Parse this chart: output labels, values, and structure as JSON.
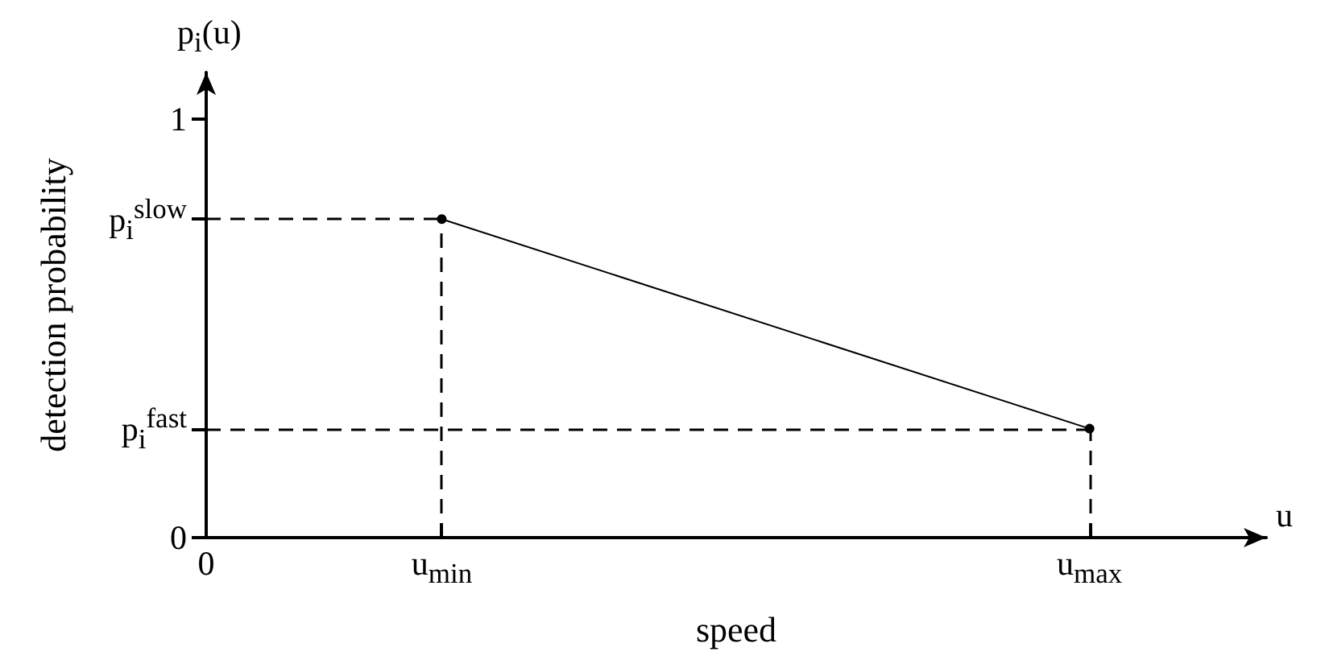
{
  "chart_data": {
    "type": "line",
    "xlabel": "speed",
    "ylabel": "detection probability",
    "annotations": [
      "p$_{i}$(u)",
      "u"
    ],
    "categories": [
      "0",
      null,
      null,
      null,
      "u$_{min}$",
      null,
      null,
      null,
      null,
      null,
      null,
      null,
      null,
      null,
      null,
      "u$_{max}$",
      null,
      null,
      null
    ],
    "series": [
      {
        "color": "#000000",
        "values": [
          null,
          null,
          null,
          null,
          0.76,
          null,
          null,
          null,
          null,
          null,
          null,
          null,
          null,
          null,
          null,
          0.26,
          null,
          null,
          null
        ]
      }
    ],
    "ylim": [
      0,
      1.11
    ],
    "yticks": [
      0,
      {
        "value": 0.26,
        "label": "p$_{i}$$^{fast}$"
      },
      {
        "value": 0.76,
        "label": "p$_{i}$$^{slow}$"
      },
      1
    ],
    "ref_lines": [
      {
        "axis": "y",
        "value": 0.76,
        "line_style": "dashed",
        "color": "#000000"
      },
      {
        "axis": "y",
        "value": 0.26,
        "line_style": "dashed",
        "color": "#000000"
      },
      {
        "axis": "x",
        "value": "u$_{min}$",
        "line_style": "dashed",
        "color": "#000000"
      },
      {
        "axis": "x",
        "value": "u$_{max}$",
        "line_style": "dashed",
        "color": "#000000"
      }
    ],
    "marker": "circle",
    "line_style": "solid"
  }
}
